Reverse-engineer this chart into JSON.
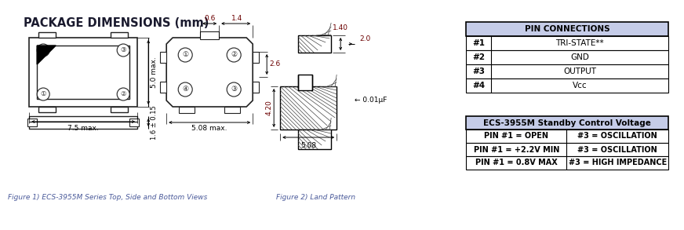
{
  "title": "PACKAGE DIMENSIONS (mm)",
  "title_color": "#1a1a2e",
  "background_color": "#ffffff",
  "fig_caption1": "Figure 1) ECS-3955M Series Top, Side and Bottom Views",
  "fig_caption2": "Figure 2) Land Pattern",
  "pin_conn_header": "PIN CONNECTIONS",
  "pin_conn_rows": [
    [
      "#1",
      "TRI-STATE**"
    ],
    [
      "#2",
      "GND"
    ],
    [
      "#3",
      "OUTPUT"
    ],
    [
      "#4",
      "Vcc"
    ]
  ],
  "standby_header": "ECS-3955M Standby Control Voltage",
  "standby_rows": [
    [
      "PIN #1 = OPEN",
      "#3 = OSCILLATION"
    ],
    [
      "PIN #1 = +2.2V MIN",
      "#3 = OSCILLATION"
    ],
    [
      "PIN #1 = 0.8V MAX",
      "#3 = HIGH IMPEDANCE"
    ]
  ],
  "header_bg": "#c5cce8",
  "dim_color": "#6b0000",
  "draw_color": "#222222",
  "caption_color": "#4a5a9a"
}
